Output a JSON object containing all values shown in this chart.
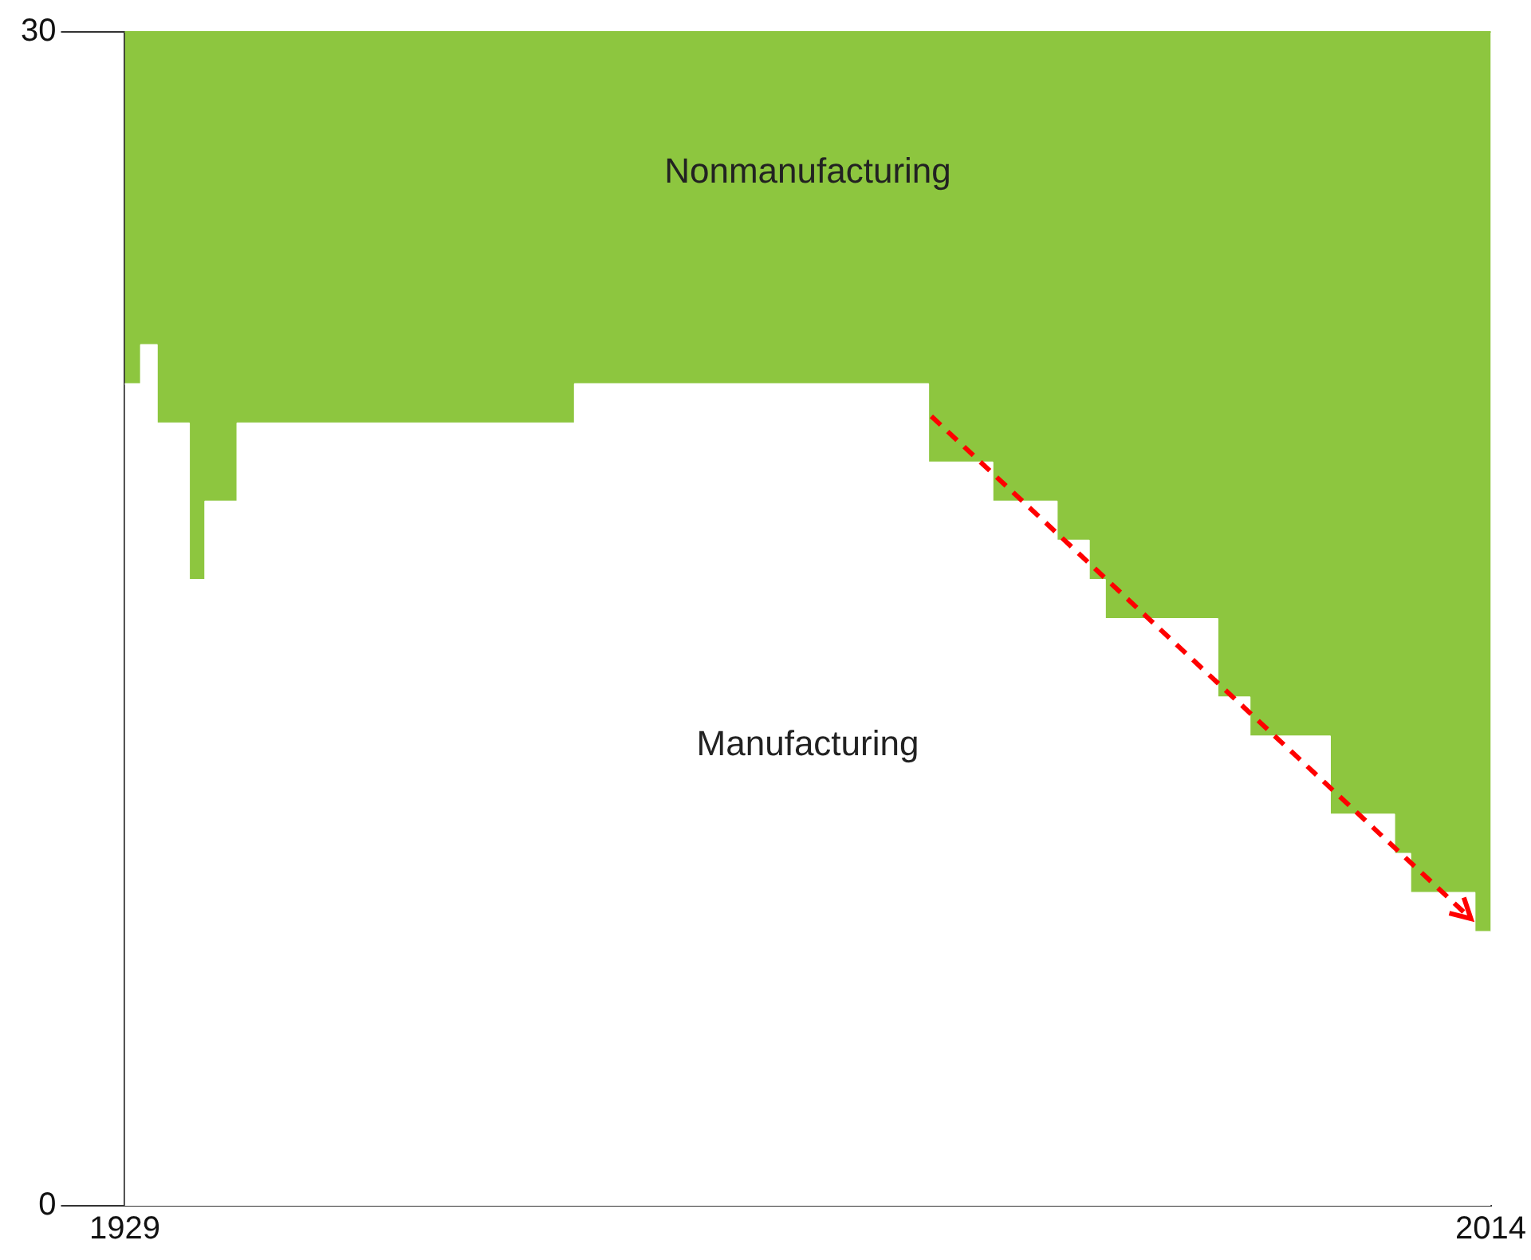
{
  "chart_data": {
    "type": "area",
    "stacked": true,
    "x": [
      1929,
      1930,
      1930,
      1931,
      1931,
      1933,
      1933,
      1934,
      1934,
      1936,
      1936,
      1957,
      1957,
      1979,
      1979,
      1983,
      1983,
      1987,
      1987,
      1989,
      1989,
      1990,
      1990,
      1997,
      1997,
      1999,
      1999,
      2004,
      2004,
      2008,
      2008,
      2009,
      2009,
      2013,
      2013,
      2014
    ],
    "xlim": [
      1929,
      2014
    ],
    "xticks": [
      {
        "value": 1929,
        "label": "1929"
      },
      {
        "value": 2014,
        "label": "2014"
      }
    ],
    "ylim": [
      0,
      30
    ],
    "yticks": [
      0,
      30
    ],
    "legend": false,
    "series": [
      {
        "name": "Manufacturing",
        "color": "#ffffff",
        "values": [
          21,
          21,
          22,
          22,
          20,
          20,
          16,
          16,
          18,
          18,
          20,
          20,
          21,
          21,
          19,
          19,
          18,
          18,
          17,
          17,
          16,
          16,
          15,
          15,
          13,
          13,
          12,
          12,
          10,
          10,
          9,
          9,
          8,
          8,
          7,
          7
        ]
      },
      {
        "name": "Nonmanufacturing",
        "color": "#8dc63f",
        "values": [
          9,
          9,
          8,
          8,
          10,
          10,
          14,
          14,
          12,
          12,
          10,
          10,
          9,
          9,
          11,
          11,
          12,
          12,
          13,
          13,
          14,
          14,
          15,
          15,
          17,
          17,
          18,
          18,
          20,
          20,
          21,
          21,
          22,
          22,
          23,
          23
        ]
      }
    ]
  }
}
